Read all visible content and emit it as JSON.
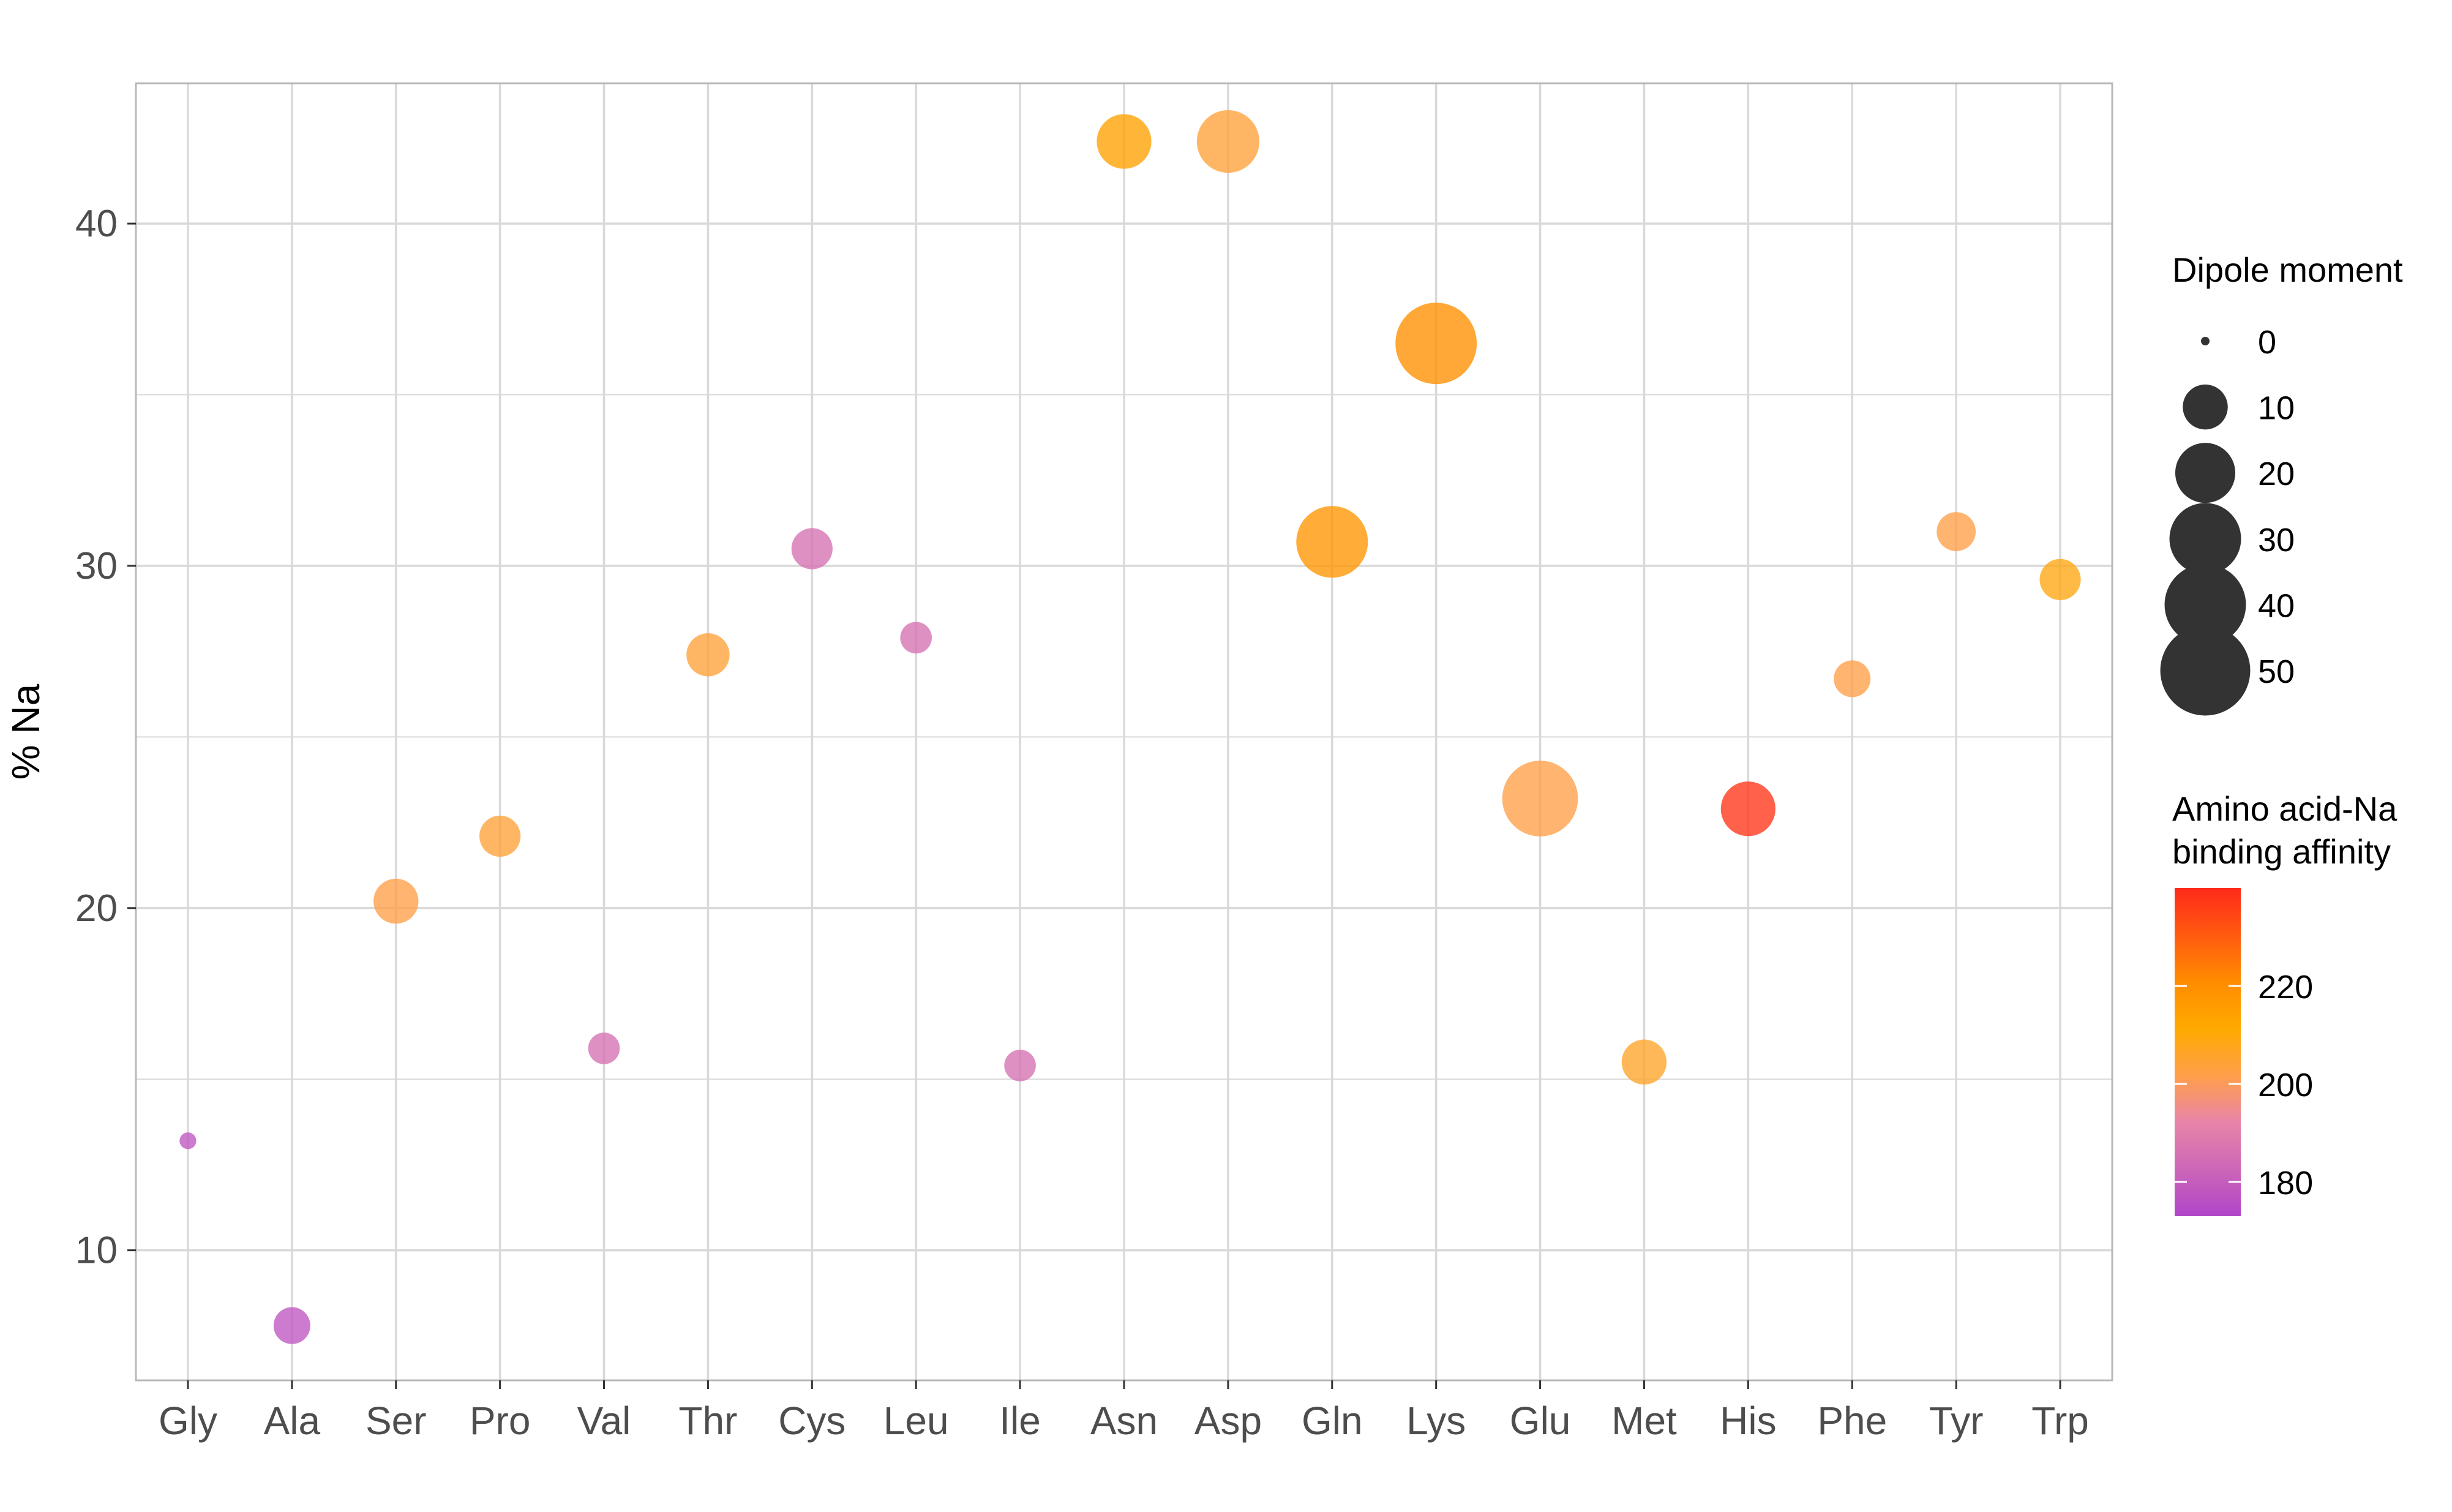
{
  "chart_data": {
    "type": "scatter",
    "xlabel": "",
    "ylabel": "% Na",
    "ylim": [
      6.2,
      44.1
    ],
    "yticks": [
      10,
      20,
      30,
      40
    ],
    "grid": true,
    "categories": [
      "Gly",
      "Ala",
      "Ser",
      "Pro",
      "Val",
      "Thr",
      "Cys",
      "Leu",
      "Ile",
      "Asn",
      "Asp",
      "Gln",
      "Lys",
      "Glu",
      "Met",
      "His",
      "Phe",
      "Tyr",
      "Trp"
    ],
    "points": [
      {
        "category": "Gly",
        "y": 13.2,
        "dipole_moment": 0.5,
        "binding_affinity": 178
      },
      {
        "category": "Ala",
        "y": 7.8,
        "dipole_moment": 6,
        "binding_affinity": 178
      },
      {
        "category": "Ser",
        "y": 20.2,
        "dipole_moment": 10,
        "binding_affinity": 202
      },
      {
        "category": "Pro",
        "y": 22.1,
        "dipole_moment": 8,
        "binding_affinity": 204
      },
      {
        "category": "Val",
        "y": 15.9,
        "dipole_moment": 4,
        "binding_affinity": 186
      },
      {
        "category": "Thr",
        "y": 27.4,
        "dipole_moment": 9,
        "binding_affinity": 204
      },
      {
        "category": "Cys",
        "y": 30.5,
        "dipole_moment": 8,
        "binding_affinity": 186
      },
      {
        "category": "Leu",
        "y": 27.9,
        "dipole_moment": 4,
        "binding_affinity": 186
      },
      {
        "category": "Ile",
        "y": 15.4,
        "dipole_moment": 4,
        "binding_affinity": 186
      },
      {
        "category": "Asn",
        "y": 42.4,
        "dipole_moment": 16,
        "binding_affinity": 214
      },
      {
        "category": "Asp",
        "y": 42.4,
        "dipole_moment": 22,
        "binding_affinity": 204
      },
      {
        "category": "Gln",
        "y": 30.7,
        "dipole_moment": 30,
        "binding_affinity": 218
      },
      {
        "category": "Lys",
        "y": 36.5,
        "dipole_moment": 40,
        "binding_affinity": 220
      },
      {
        "category": "Glu",
        "y": 23.2,
        "dipole_moment": 34,
        "binding_affinity": 202
      },
      {
        "category": "Met",
        "y": 15.5,
        "dipole_moment": 10,
        "binding_affinity": 206
      },
      {
        "category": "His",
        "y": 22.9,
        "dipole_moment": 16,
        "binding_affinity": 238
      },
      {
        "category": "Phe",
        "y": 26.7,
        "dipole_moment": 6,
        "binding_affinity": 202
      },
      {
        "category": "Tyr",
        "y": 31.0,
        "dipole_moment": 7,
        "binding_affinity": 202
      },
      {
        "category": "Trp",
        "y": 29.6,
        "dipole_moment": 8,
        "binding_affinity": 209
      }
    ],
    "size_legend": {
      "title": "Dipole moment",
      "values": [
        0,
        10,
        20,
        30,
        40,
        50
      ],
      "labels": [
        "0",
        "10",
        "20",
        "30",
        "40",
        "50"
      ]
    },
    "color_legend": {
      "title_lines": [
        "Amino acid-Na",
        "binding affinity"
      ],
      "range": [
        173,
        240
      ],
      "ticks": [
        180,
        200,
        220
      ],
      "tick_labels": [
        "180",
        "200",
        "220"
      ],
      "colors": [
        "#b045c8",
        "#cc66b8",
        "#e884a8",
        "#ff9f4a",
        "#ffaa00",
        "#ff8c00",
        "#ff5a10",
        "#ff2a1a"
      ]
    },
    "point_alpha": 0.78,
    "size_key_color": "#333333",
    "gridline_color": "#d9d9d9",
    "panel_border_color": "#b8b8b8",
    "tick_label_color": "#4d4d4d"
  }
}
